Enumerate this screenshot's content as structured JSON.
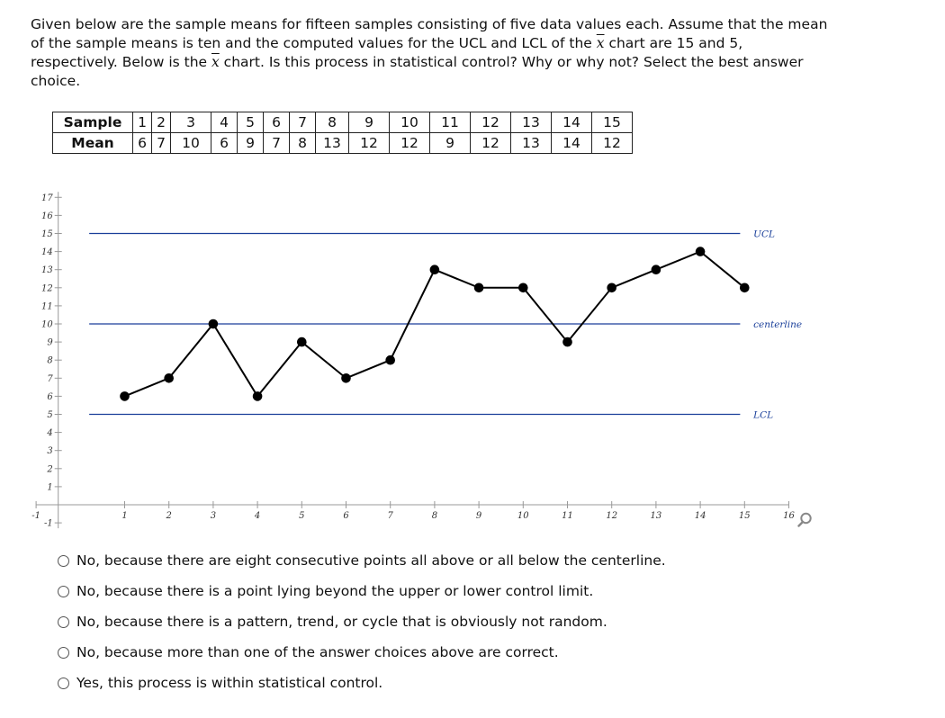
{
  "question": {
    "part1": "Given below are the sample means for fifteen samples consisting of five data values each. Assume that the mean of the sample means is ten and the computed values for the UCL and LCL of the ",
    "xbar_symbol": "x",
    "part2": " chart are 15 and 5, respectively. Below is the ",
    "part3": " chart. Is this process in statistical control? Why or why not? Select the best answer choice."
  },
  "table": {
    "row_labels": [
      "Sample",
      "Mean"
    ],
    "samples": [
      "1",
      "2",
      "3",
      "4",
      "5",
      "6",
      "7",
      "8",
      "9",
      "10",
      "11",
      "12",
      "13",
      "14",
      "15"
    ],
    "means": [
      "6",
      "7",
      "10",
      "6",
      "9",
      "7",
      "8",
      "13",
      "12",
      "12",
      "9",
      "12",
      "13",
      "14",
      "12"
    ]
  },
  "chart_data": {
    "type": "line",
    "x": [
      1,
      2,
      3,
      4,
      5,
      6,
      7,
      8,
      9,
      10,
      11,
      12,
      13,
      14,
      15
    ],
    "series": [
      {
        "values": [
          6,
          7,
          10,
          6,
          9,
          7,
          8,
          13,
          12,
          12,
          9,
          12,
          13,
          14,
          12
        ]
      }
    ],
    "reference_lines": [
      {
        "label": "UCL",
        "value": 15
      },
      {
        "label": "centerline",
        "value": 10
      },
      {
        "label": "LCL",
        "value": 5
      }
    ],
    "x_ticks": [
      "-1",
      "1",
      "2",
      "3",
      "4",
      "5",
      "6",
      "7",
      "8",
      "9",
      "10",
      "11",
      "12",
      "13",
      "14",
      "15",
      "16"
    ],
    "y_ticks": [
      "-1",
      "1",
      "2",
      "3",
      "4",
      "5",
      "6",
      "7",
      "8",
      "9",
      "10",
      "11",
      "12",
      "13",
      "14",
      "15",
      "16",
      "17"
    ],
    "xlim": [
      -1,
      16
    ],
    "ylim": [
      -1,
      17
    ],
    "grid": false,
    "colors": {
      "series": "#000000",
      "reference": "#1a3f9a"
    }
  },
  "choices": [
    "No, because there are eight consecutive points all above or all below the centerline.",
    "No, because there is a point lying beyond the upper or lower control limit.",
    "No, because there is a pattern, trend, or cycle that is obviously not random.",
    "No, because more than one of the answer choices above are correct.",
    "Yes, this process is within statistical control."
  ],
  "icons": {
    "zoom": "magnifier-icon"
  }
}
